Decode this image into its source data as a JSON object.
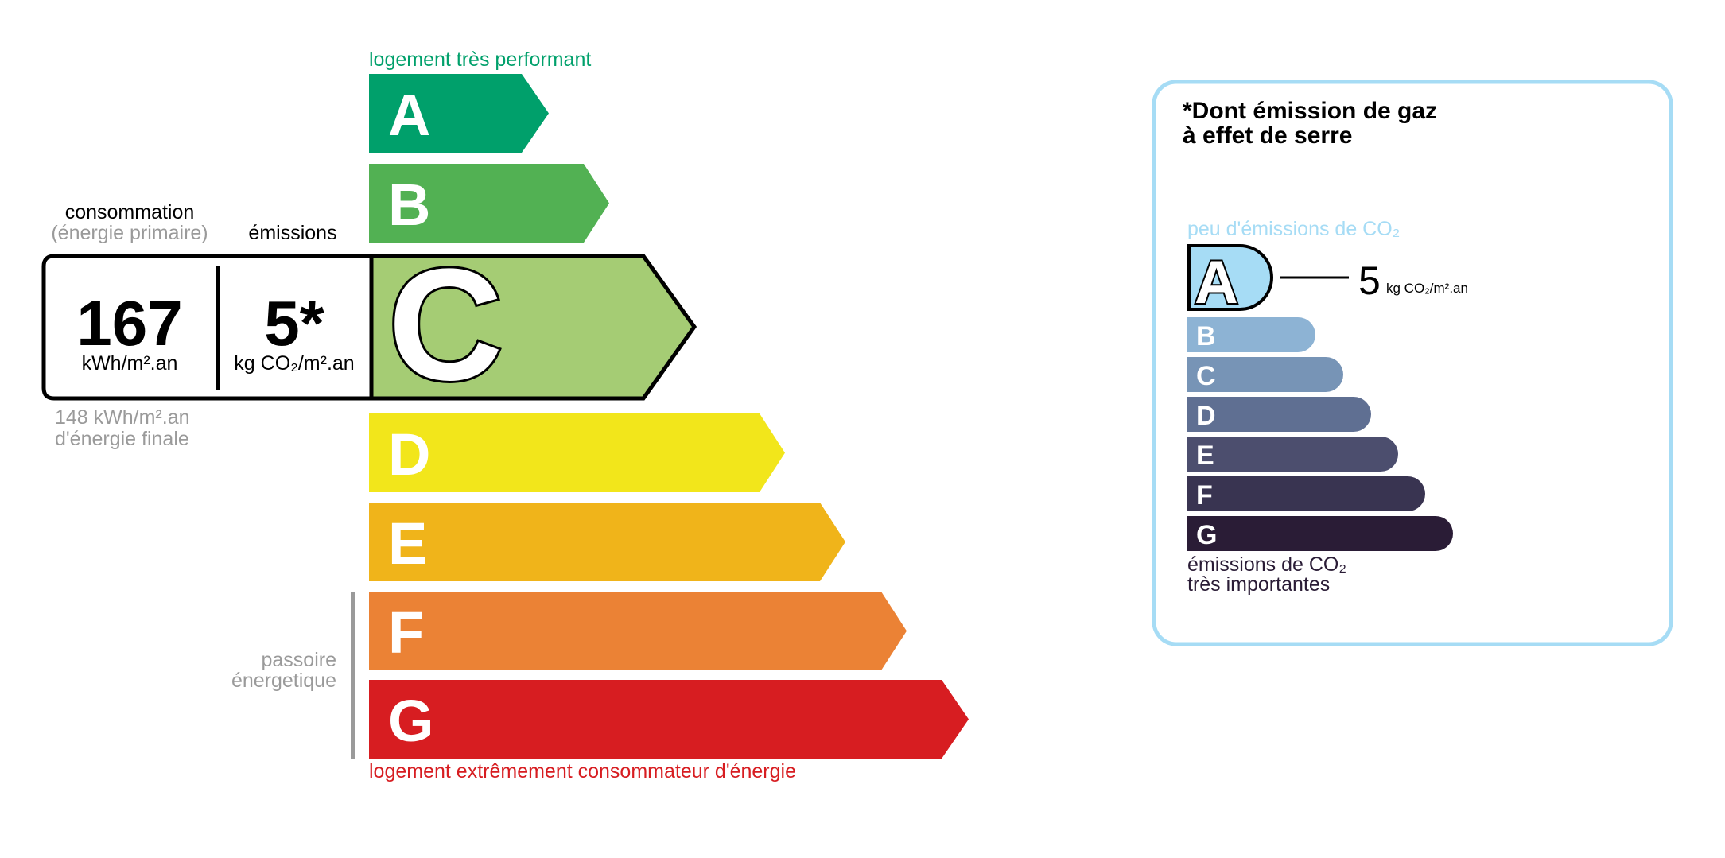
{
  "energy": {
    "top_label": "logement très performant",
    "bottom_label": "logement extrêmement consommateur d'énergie",
    "passoire_line1": "passoire",
    "passoire_line2": "énergetique",
    "current_class": "C",
    "classes": [
      {
        "letter": "A",
        "color": "#00a06b"
      },
      {
        "letter": "B",
        "color": "#52b153"
      },
      {
        "letter": "C",
        "color": "#a5cc74"
      },
      {
        "letter": "D",
        "color": "#f2e61b"
      },
      {
        "letter": "E",
        "color": "#f0b41a"
      },
      {
        "letter": "F",
        "color": "#eb8235"
      },
      {
        "letter": "G",
        "color": "#d71d21"
      }
    ],
    "consumption_title": "consommation",
    "consumption_subtitle": "(énergie primaire)",
    "emissions_title": "émissions",
    "consumption_value": "167",
    "consumption_unit": "kWh/m².an",
    "emissions_value": "5*",
    "emissions_unit": "kg CO₂/m².an",
    "final_energy_line1": "148 kWh/m².an",
    "final_energy_line2": "d'énergie finale"
  },
  "ges": {
    "title_line1": "*Dont émission de gaz",
    "title_line2": "à effet de serre",
    "top_label": "peu d'émissions de CO₂",
    "bottom_line1": "émissions de CO₂",
    "bottom_line2": "très importantes",
    "current_class": "A",
    "value": "5",
    "unit": "kg CO₂/m².an",
    "border_color": "#a6dcf5",
    "classes": [
      {
        "letter": "A",
        "color": "#a6dcf5"
      },
      {
        "letter": "B",
        "color": "#8db3d4"
      },
      {
        "letter": "C",
        "color": "#7794b6"
      },
      {
        "letter": "D",
        "color": "#5f6f92"
      },
      {
        "letter": "E",
        "color": "#4c4e6e"
      },
      {
        "letter": "F",
        "color": "#393451"
      },
      {
        "letter": "G",
        "color": "#2a1c36"
      }
    ]
  }
}
